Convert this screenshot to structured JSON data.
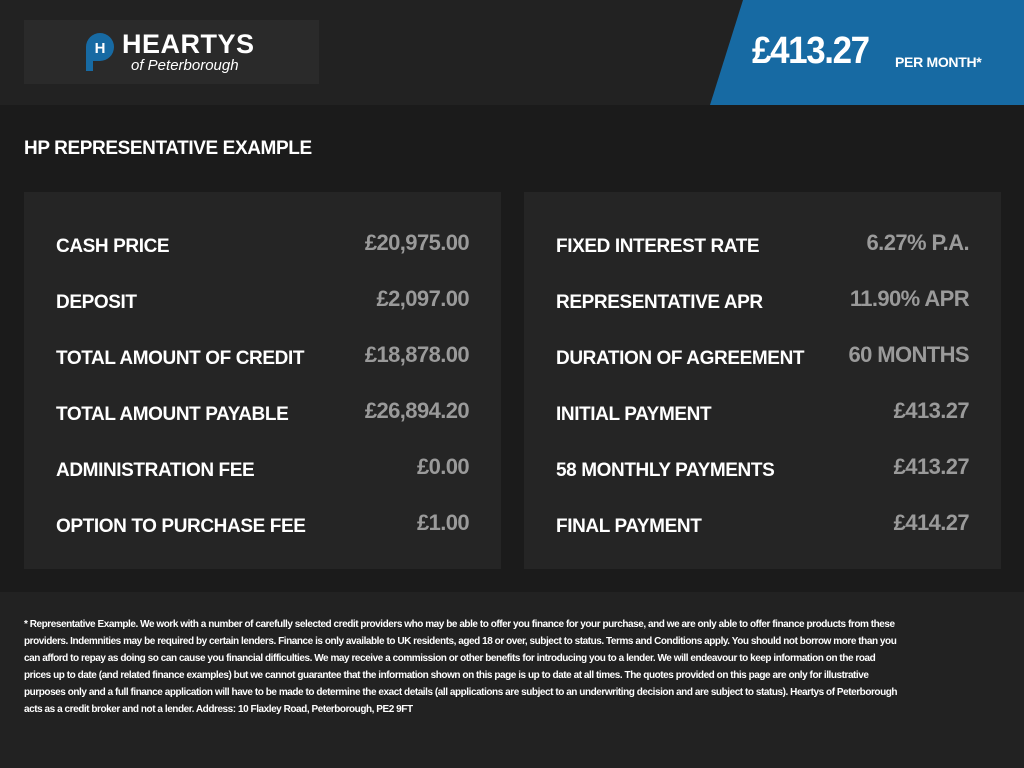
{
  "header": {
    "logo_name": "HEARTYS",
    "logo_sub": "of Peterborough",
    "logo_mark": "H",
    "price": "£413.27",
    "per_month": "PER MONTH*",
    "accent": "#176aa3"
  },
  "title": "HP REPRESENTATIVE EXAMPLE",
  "left": [
    {
      "label": "CASH PRICE",
      "value": "£20,975.00"
    },
    {
      "label": "DEPOSIT",
      "value": "£2,097.00"
    },
    {
      "label": "TOTAL AMOUNT OF CREDIT",
      "value": "£18,878.00"
    },
    {
      "label": "TOTAL AMOUNT PAYABLE",
      "value": "£26,894.20"
    },
    {
      "label": "ADMINISTRATION FEE",
      "value": "£0.00"
    },
    {
      "label": "OPTION TO PURCHASE FEE",
      "value": "£1.00"
    }
  ],
  "right": [
    {
      "label": "FIXED INTEREST RATE",
      "value": "6.27% P.A."
    },
    {
      "label": "REPRESENTATIVE APR",
      "value": "11.90% APR"
    },
    {
      "label": "DURATION OF AGREEMENT",
      "value": "60 MONTHS"
    },
    {
      "label": "INITIAL PAYMENT",
      "value": "£413.27"
    },
    {
      "label": "58 MONTHLY PAYMENTS",
      "value": "£413.27"
    },
    {
      "label": "FINAL PAYMENT",
      "value": "£414.27"
    }
  ],
  "disclaimer": "* Representative Example. We work with a number of carefully selected credit providers who may be able to offer you finance for your purchase, and we are only able to offer finance products from these providers. Indemnities may be required by certain lenders. Finance is only available to UK residents, aged 18 or over, subject to status. Terms and Conditions apply. You should not borrow more than you can afford to repay as doing so can cause you financial difficulties. We may receive a commission or other benefits for introducing you to a lender. We will endeavour to keep information on the road prices up to date (and related finance examples) but we cannot guarantee that the information shown on this page is up to date at all times. The quotes provided on this page are only for illustrative purposes only and a full finance application will have to be made to determine the exact details (all applications are subject to an underwriting decision and are subject to status). Heartys of Peterborough acts as a credit broker and not a lender. Address: 10 Flaxley Road, Peterborough, PE2 9FT"
}
